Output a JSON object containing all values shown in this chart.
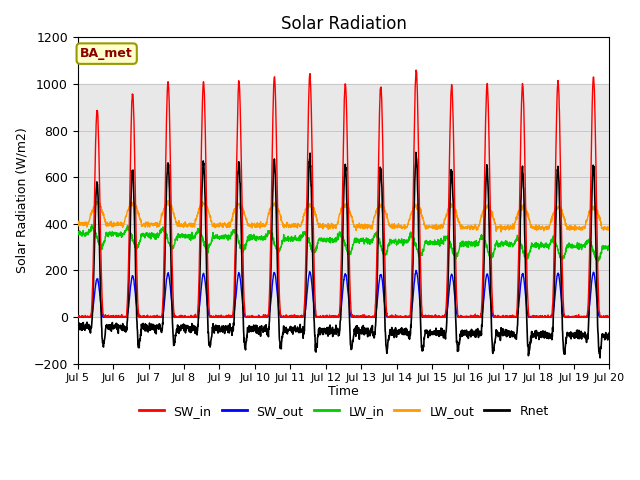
{
  "title": "Solar Radiation",
  "ylabel": "Solar Radiation (W/m2)",
  "xlabel": "Time",
  "ylim": [
    -200,
    1200
  ],
  "xlim_days": [
    5,
    20
  ],
  "annotation": "BA_met",
  "legend": [
    "SW_in",
    "SW_out",
    "LW_in",
    "LW_out",
    "Rnet"
  ],
  "colors": {
    "SW_in": "#ff0000",
    "SW_out": "#0000ff",
    "LW_in": "#00cc00",
    "LW_out": "#ff9900",
    "Rnet": "#000000"
  },
  "shade_ylim": [
    0,
    1000
  ],
  "shade_color": "#e8e8e8",
  "grid_color": "#c8c8c8",
  "background_color": "#ffffff",
  "xtick_labels": [
    "Jul 5",
    "Jul 6",
    "Jul 7",
    "Jul 8",
    "Jul 9",
    "Jul 10",
    "Jul 11",
    "Jul 12",
    "Jul 13",
    "Jul 14",
    "Jul 15",
    "Jul 16",
    "Jul 17",
    "Jul 18",
    "Jul 19",
    "Jul 20"
  ],
  "xtick_positions": [
    5,
    6,
    7,
    8,
    9,
    10,
    11,
    12,
    13,
    14,
    15,
    16,
    17,
    18,
    19,
    20
  ],
  "n_days": 15,
  "start_day": 5,
  "points_per_day": 144,
  "SW_in_peaks": [
    890,
    960,
    1010,
    1010,
    1010,
    1030,
    1040,
    1000,
    990,
    1060,
    990,
    1000,
    1000,
    1010,
    1030
  ]
}
